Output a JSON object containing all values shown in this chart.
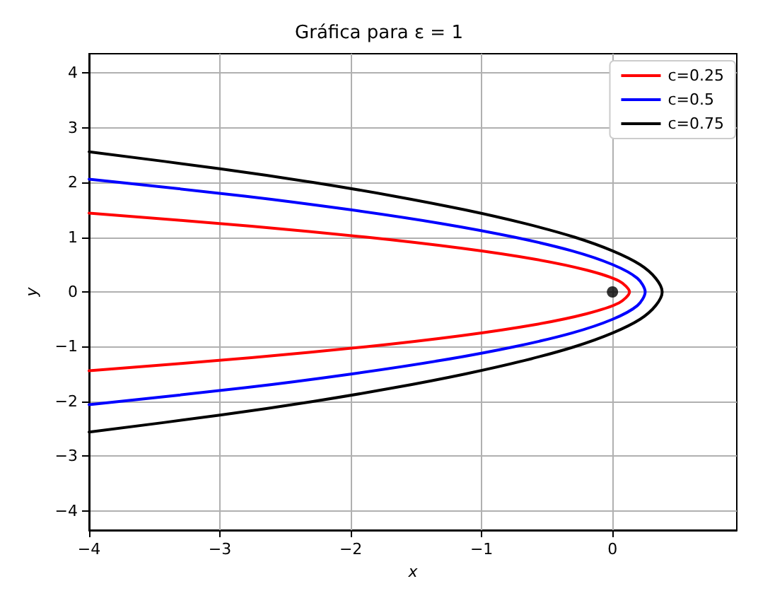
{
  "chart_data": {
    "type": "line",
    "title": "Gráfica para ε = 1",
    "xlabel": "x",
    "ylabel": "y",
    "xlim": [
      -4,
      0.95
    ],
    "xticks": [
      -4,
      -3,
      -2,
      -1,
      0
    ],
    "ylim": [
      -4.35,
      4.35
    ],
    "yticks": [
      -4,
      -3,
      -2,
      -1,
      0,
      1,
      2,
      3,
      4
    ],
    "grid": true,
    "legend": "top right",
    "marker": "none",
    "line_style": "solid",
    "series": [
      {
        "name": "c=0.25",
        "color": "#ff0000",
        "x": [
          -4.0,
          -2.76,
          -1.88,
          -1.16,
          -0.6,
          -0.2,
          0.05,
          0.13,
          0.05,
          -0.2,
          -0.6,
          -1.16,
          -1.88,
          -2.76,
          -4.0
        ],
        "values": [
          -1.44,
          -1.2,
          -1.0,
          -0.8,
          -0.6,
          -0.4,
          -0.2,
          0,
          0.2,
          0.4,
          0.6,
          0.8,
          1.0,
          1.2,
          1.44
        ]
      },
      {
        "name": "c=0.5",
        "color": "#0000ff",
        "x": [
          -4.0,
          -2.81,
          -2.0,
          -1.31,
          -0.75,
          -0.31,
          0,
          0.19,
          0.25,
          0.19,
          0,
          -0.31,
          -0.75,
          -1.31,
          -2.0,
          -2.81,
          -4.0
        ],
        "values": [
          -2.06,
          -1.75,
          -1.5,
          -1.25,
          -1.0,
          -0.75,
          -0.5,
          -0.25,
          0,
          0.25,
          0.5,
          0.75,
          1.0,
          1.25,
          1.5,
          1.75,
          2.06
        ]
      },
      {
        "name": "c=0.75",
        "color": "#000000",
        "x": [
          -4.0,
          -3.0,
          -2.29,
          -1.67,
          -1.13,
          -0.67,
          -0.29,
          0,
          0.21,
          0.33,
          0.38,
          0.33,
          0.21,
          0,
          -0.29,
          -0.67,
          -1.13,
          -1.67,
          -2.29,
          -3.0,
          -4.0
        ],
        "values": [
          -2.56,
          -2.25,
          -2.0,
          -1.75,
          -1.5,
          -1.25,
          -1.0,
          -0.75,
          -0.5,
          -0.25,
          0,
          0.25,
          0.5,
          0.75,
          1.0,
          1.25,
          1.5,
          1.75,
          2.0,
          2.25,
          2.56
        ]
      },
      {
        "type": "scatter",
        "marker": "circle",
        "color": "#000000",
        "x": [
          0
        ],
        "values": [
          0
        ]
      }
    ]
  }
}
